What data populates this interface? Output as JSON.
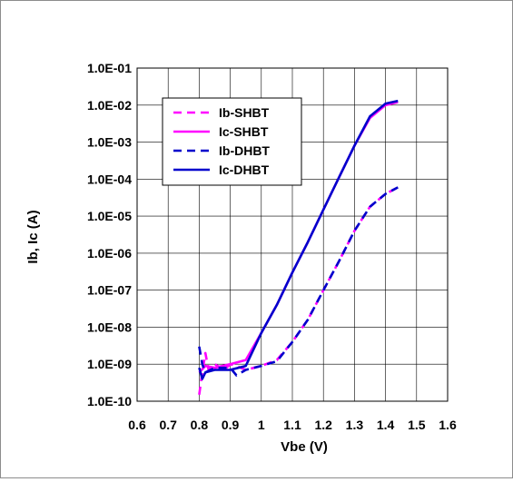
{
  "chart_data": {
    "type": "line",
    "title": "",
    "xlabel": "Vbe (V)",
    "ylabel": "Ib, Ic (A)",
    "x_scale": "linear",
    "y_scale": "log",
    "xlim": [
      0.6,
      1.6
    ],
    "ylim": [
      1e-10,
      0.1
    ],
    "x_ticks": [
      "0.6",
      "0.7",
      "0.8",
      "0.9",
      "1",
      "1.1",
      "1.2",
      "1.3",
      "1.4",
      "1.5",
      "1.6"
    ],
    "y_ticks": [
      "1.0E-10",
      "1.0E-09",
      "1.0E-08",
      "1.0E-07",
      "1.0E-06",
      "1.0E-05",
      "1.0E-04",
      "1.0E-03",
      "1.0E-02",
      "1.0E-01"
    ],
    "grid": true,
    "legend_position": "top-left",
    "series": [
      {
        "name": "Ib-SHBT",
        "color": "#ff00ff",
        "dash": "dashed",
        "points": [
          [
            0.8,
            1.5e-10
          ],
          [
            0.81,
            6e-10
          ],
          [
            0.82,
            2e-09
          ],
          [
            0.83,
            7e-10
          ],
          [
            0.85,
            1e-09
          ],
          [
            0.88,
            7e-10
          ],
          [
            0.9,
            1e-09
          ],
          [
            0.92,
            9e-10
          ],
          [
            0.95,
            7e-10
          ],
          [
            1.0,
            9e-10
          ],
          [
            1.05,
            1.3e-09
          ],
          [
            1.1,
            4e-09
          ],
          [
            1.15,
            1.6e-08
          ],
          [
            1.2,
            1e-07
          ],
          [
            1.25,
            6e-07
          ],
          [
            1.3,
            4e-06
          ],
          [
            1.35,
            1.8e-05
          ],
          [
            1.4,
            4e-05
          ],
          [
            1.44,
            6e-05
          ]
        ]
      },
      {
        "name": "Ic-SHBT",
        "color": "#ff00ff",
        "dash": "solid",
        "points": [
          [
            0.8,
            6e-10
          ],
          [
            0.82,
            9e-10
          ],
          [
            0.85,
            8e-10
          ],
          [
            0.9,
            1e-09
          ],
          [
            0.95,
            1.3e-09
          ],
          [
            1.0,
            7e-09
          ],
          [
            1.05,
            4e-08
          ],
          [
            1.1,
            3e-07
          ],
          [
            1.15,
            2e-06
          ],
          [
            1.2,
            1.5e-05
          ],
          [
            1.25,
            0.00011
          ],
          [
            1.3,
            0.0008
          ],
          [
            1.35,
            0.0045
          ],
          [
            1.4,
            0.01
          ],
          [
            1.44,
            0.012
          ]
        ]
      },
      {
        "name": "Ib-DHBT",
        "color": "#0000cc",
        "dash": "dashed",
        "points": [
          [
            0.8,
            3e-09
          ],
          [
            0.81,
            1e-09
          ],
          [
            0.82,
            6e-10
          ],
          [
            0.85,
            8e-10
          ],
          [
            0.9,
            8e-10
          ],
          [
            0.92,
            5e-10
          ],
          [
            0.95,
            7e-10
          ],
          [
            1.0,
            9e-10
          ],
          [
            1.05,
            1.2e-09
          ],
          [
            1.1,
            4e-09
          ],
          [
            1.15,
            1.6e-08
          ],
          [
            1.2,
            1e-07
          ],
          [
            1.25,
            6e-07
          ],
          [
            1.3,
            4e-06
          ],
          [
            1.35,
            1.8e-05
          ],
          [
            1.4,
            4e-05
          ],
          [
            1.44,
            6e-05
          ]
        ]
      },
      {
        "name": "Ic-DHBT",
        "color": "#0000cc",
        "dash": "solid",
        "points": [
          [
            0.8,
            8e-10
          ],
          [
            0.81,
            4e-10
          ],
          [
            0.82,
            6e-10
          ],
          [
            0.85,
            7e-10
          ],
          [
            0.9,
            7e-10
          ],
          [
            0.95,
            9e-10
          ],
          [
            1.0,
            7e-09
          ],
          [
            1.05,
            4e-08
          ],
          [
            1.1,
            3e-07
          ],
          [
            1.15,
            2e-06
          ],
          [
            1.2,
            1.5e-05
          ],
          [
            1.25,
            0.00011
          ],
          [
            1.3,
            0.0008
          ],
          [
            1.35,
            0.005
          ],
          [
            1.4,
            0.011
          ],
          [
            1.44,
            0.013
          ]
        ]
      }
    ]
  }
}
